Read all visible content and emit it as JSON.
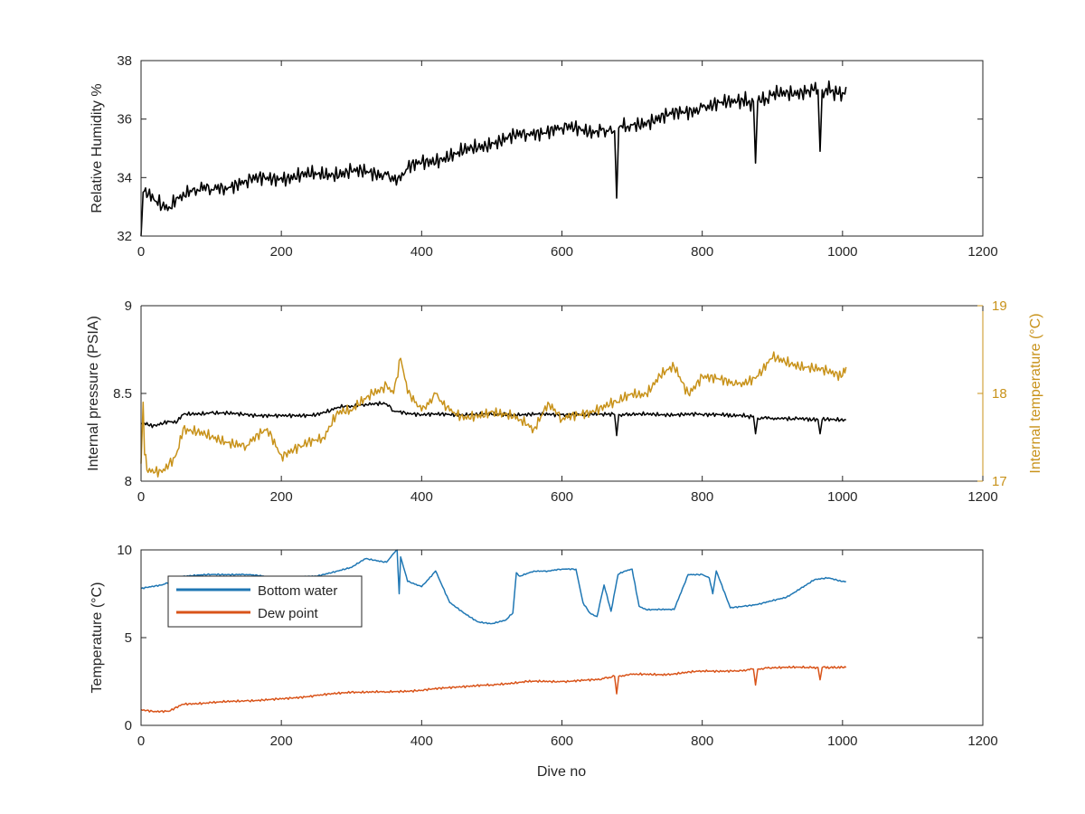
{
  "colors": {
    "black": "#000000",
    "axis": "#262626",
    "gold": "#C8921A",
    "blue": "#1F77B4",
    "orange": "#D9541A",
    "background": "#FFFFFF"
  },
  "chart_data": [
    {
      "id": "humidity",
      "type": "line",
      "ylabel": "Relative Humidity %",
      "xlim": [
        0,
        1200
      ],
      "ylim": [
        32,
        38
      ],
      "xticks": [
        0,
        200,
        400,
        600,
        800,
        1000,
        1200
      ],
      "yticks": [
        32,
        34,
        36,
        38
      ],
      "grid": false,
      "series": [
        {
          "color": "#000000",
          "x": [
            0,
            3,
            10,
            20,
            30,
            40,
            50,
            60,
            80,
            100,
            120,
            150,
            200,
            250,
            300,
            350,
            370,
            380,
            400,
            450,
            500,
            550,
            600,
            650,
            675,
            678,
            681,
            700,
            750,
            800,
            850,
            873,
            876,
            879,
            900,
            950,
            965,
            968,
            971,
            1000,
            1005
          ],
          "y": [
            32.0,
            33.5,
            33.4,
            33.2,
            33.0,
            33.0,
            33.3,
            33.5,
            33.6,
            33.6,
            33.7,
            33.9,
            34.0,
            34.1,
            34.2,
            34.1,
            33.9,
            34.3,
            34.5,
            34.8,
            35.2,
            35.5,
            35.7,
            35.6,
            35.6,
            33.3,
            35.7,
            35.8,
            36.1,
            36.4,
            36.6,
            36.6,
            34.5,
            36.6,
            36.8,
            37.0,
            37.0,
            34.9,
            37.0,
            36.9,
            37.1
          ]
        }
      ]
    },
    {
      "id": "pressure-temperature",
      "type": "line",
      "ylabel": "Internal pressure (PSIA)",
      "y2label": "Internal temperature (°C)",
      "xlim": [
        0,
        1200
      ],
      "ylim": [
        8,
        9
      ],
      "y2lim": [
        17,
        19
      ],
      "xticks": [
        0,
        200,
        400,
        600,
        800,
        1000,
        1200
      ],
      "yticks": [
        8,
        8.5,
        9
      ],
      "y2ticks": [
        17,
        18,
        19
      ],
      "grid": false,
      "series": [
        {
          "axis": "left",
          "color": "#000000",
          "x": [
            0,
            5,
            10,
            20,
            40,
            50,
            60,
            100,
            150,
            200,
            250,
            270,
            280,
            300,
            320,
            350,
            360,
            380,
            400,
            500,
            600,
            675,
            678,
            681,
            700,
            800,
            873,
            876,
            879,
            900,
            965,
            968,
            971,
            1005
          ],
          "y": [
            8.33,
            8.33,
            8.32,
            8.32,
            8.34,
            8.33,
            8.38,
            8.39,
            8.38,
            8.37,
            8.38,
            8.4,
            8.42,
            8.43,
            8.44,
            8.44,
            8.4,
            8.39,
            8.38,
            8.38,
            8.38,
            8.38,
            8.26,
            8.38,
            8.38,
            8.38,
            8.37,
            8.27,
            8.36,
            8.36,
            8.35,
            8.27,
            8.35,
            8.35
          ]
        },
        {
          "axis": "right",
          "color": "#C8921A",
          "x": [
            0,
            3,
            5,
            10,
            20,
            30,
            40,
            50,
            60,
            100,
            150,
            180,
            200,
            230,
            260,
            280,
            300,
            330,
            350,
            360,
            370,
            380,
            400,
            420,
            440,
            460,
            500,
            540,
            560,
            580,
            600,
            640,
            680,
            700,
            720,
            740,
            760,
            780,
            800,
            850,
            880,
            900,
            950,
            1000,
            1005
          ],
          "y": [
            17.2,
            17.9,
            17.3,
            17.1,
            17.1,
            17.1,
            17.2,
            17.3,
            17.6,
            17.5,
            17.4,
            17.6,
            17.3,
            17.4,
            17.5,
            17.8,
            17.8,
            18.0,
            18.1,
            18.0,
            18.4,
            18.0,
            17.8,
            18.0,
            17.8,
            17.7,
            17.8,
            17.7,
            17.6,
            17.9,
            17.7,
            17.8,
            17.9,
            18.0,
            18.0,
            18.2,
            18.3,
            18.0,
            18.2,
            18.1,
            18.2,
            18.4,
            18.3,
            18.2,
            18.3
          ]
        }
      ]
    },
    {
      "id": "temperature",
      "type": "line",
      "ylabel": "Temperature (°C)",
      "xlabel": "Dive no",
      "xlim": [
        0,
        1200
      ],
      "ylim": [
        0,
        10
      ],
      "xticks": [
        0,
        200,
        400,
        600,
        800,
        1000,
        1200
      ],
      "yticks": [
        0,
        5,
        10
      ],
      "grid": false,
      "legend": "top-left",
      "series": [
        {
          "name": "Bottom water",
          "color": "#1F77B4",
          "x": [
            0,
            30,
            60,
            100,
            150,
            200,
            250,
            300,
            320,
            350,
            360,
            365,
            368,
            370,
            380,
            400,
            420,
            440,
            460,
            480,
            500,
            520,
            530,
            535,
            540,
            560,
            580,
            600,
            620,
            630,
            640,
            650,
            660,
            670,
            680,
            690,
            700,
            710,
            720,
            740,
            760,
            780,
            800,
            810,
            815,
            820,
            840,
            860,
            880,
            900,
            920,
            940,
            960,
            980,
            1000,
            1005
          ],
          "y": [
            7.8,
            8.0,
            8.5,
            8.6,
            8.6,
            8.4,
            8.5,
            9.0,
            9.5,
            9.3,
            9.8,
            10.0,
            7.5,
            9.6,
            8.2,
            7.9,
            8.8,
            7.0,
            6.4,
            5.9,
            5.8,
            6.0,
            6.4,
            8.7,
            8.5,
            8.8,
            8.8,
            8.9,
            8.9,
            7.0,
            6.4,
            6.2,
            8.0,
            6.5,
            8.6,
            8.8,
            8.9,
            6.8,
            6.6,
            6.6,
            6.6,
            8.6,
            8.6,
            8.4,
            7.5,
            8.8,
            6.7,
            6.8,
            6.9,
            7.1,
            7.3,
            7.8,
            8.3,
            8.4,
            8.2,
            8.2
          ]
        },
        {
          "name": "Dew point",
          "color": "#D9541A",
          "x": [
            0,
            20,
            40,
            60,
            100,
            150,
            200,
            250,
            300,
            350,
            400,
            450,
            500,
            550,
            600,
            650,
            675,
            678,
            681,
            700,
            750,
            800,
            850,
            873,
            876,
            879,
            900,
            950,
            965,
            968,
            971,
            1000,
            1005
          ],
          "y": [
            0.9,
            0.8,
            0.8,
            1.2,
            1.3,
            1.4,
            1.5,
            1.7,
            1.9,
            1.9,
            2.0,
            2.2,
            2.3,
            2.5,
            2.5,
            2.6,
            2.8,
            1.8,
            2.8,
            2.9,
            2.9,
            3.1,
            3.1,
            3.2,
            2.3,
            3.2,
            3.3,
            3.3,
            3.3,
            2.6,
            3.3,
            3.3,
            3.3
          ]
        }
      ]
    }
  ]
}
